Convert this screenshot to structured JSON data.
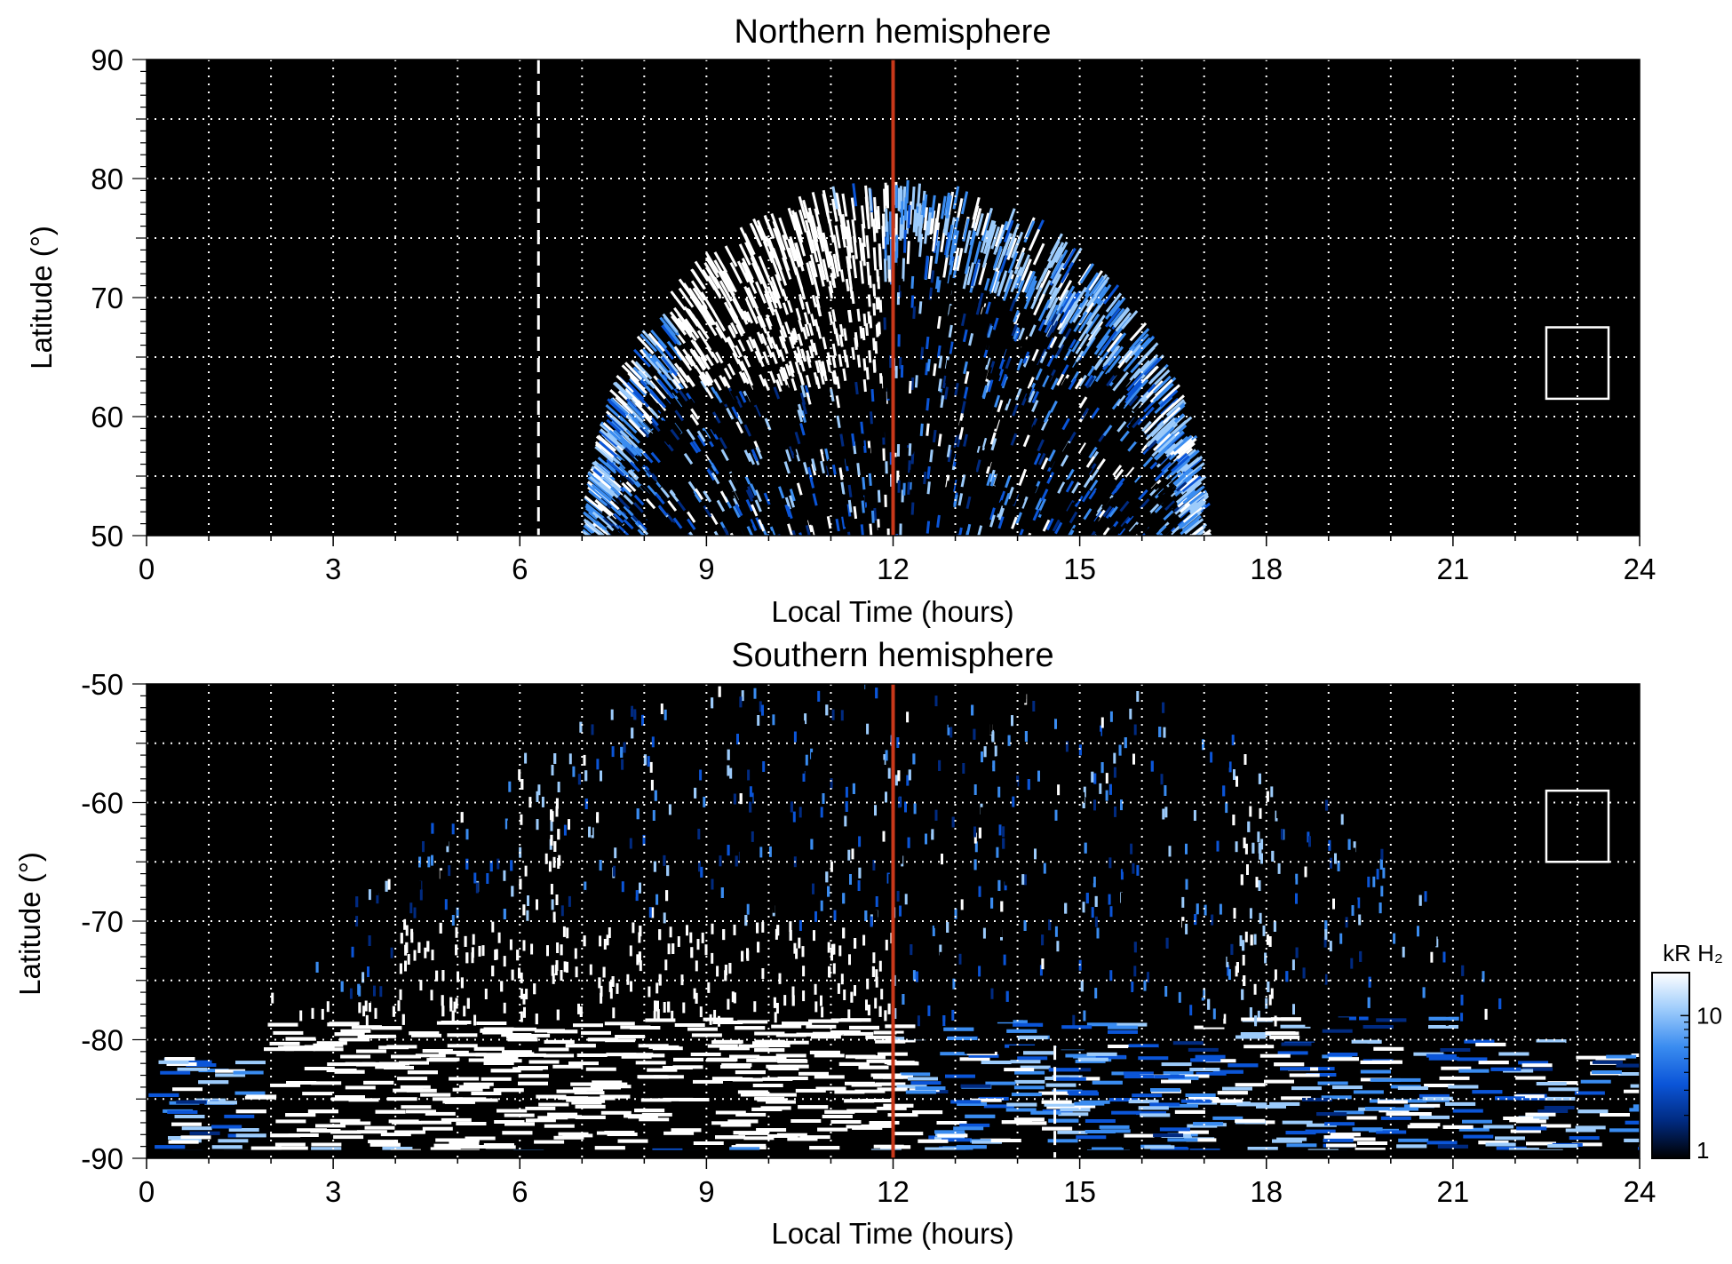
{
  "chart_data": [
    {
      "type": "heatmap",
      "title": "Northern hemisphere",
      "xlabel": "Local Time (hours)",
      "ylabel": "Latitude (°)",
      "xlim": [
        0,
        24
      ],
      "ylim": [
        50,
        90
      ],
      "xticks": [
        0,
        3,
        6,
        9,
        12,
        15,
        18,
        21,
        24
      ],
      "yticks": [
        50,
        60,
        70,
        80,
        90
      ],
      "grid": true,
      "background": "#000000",
      "coverage": {
        "lt_min": 7.0,
        "lt_max": 17.1,
        "lat_max": 80
      },
      "bright_region": {
        "lt_start": 8.4,
        "lt_end": 11.8,
        "lat_min": 63,
        "lat_max": 79
      },
      "reference_lines": [
        {
          "x": 12,
          "color": "#c8381a",
          "style": "solid"
        },
        {
          "x": 6.3,
          "color": "#ffffff",
          "style": "dashed"
        }
      ],
      "box": {
        "x": [
          22.5,
          23.5
        ],
        "y": [
          61.5,
          67.5
        ]
      }
    },
    {
      "type": "heatmap",
      "title": "Southern hemisphere",
      "xlabel": "Local Time (hours)",
      "ylabel": "Latitude (°)",
      "xlim": [
        0,
        24
      ],
      "ylim": [
        -90,
        -50
      ],
      "xticks": [
        0,
        3,
        6,
        9,
        12,
        15,
        18,
        21,
        24
      ],
      "yticks": [
        -90,
        -80,
        -70,
        -60,
        -50
      ],
      "grid": true,
      "background": "#000000",
      "bright_region": {
        "lt_start": 1.5,
        "lt_end": 12.0,
        "lat_min": -89,
        "lat_max": -70
      },
      "bright_bands": [
        {
          "lt": 6.3
        },
        {
          "lt": 17.8
        }
      ],
      "reference_lines": [
        {
          "x": 12,
          "color": "#c8381a",
          "style": "solid"
        },
        {
          "x": 14.6,
          "color": "#ffffff",
          "style": "dashed",
          "y": [
            -90,
            -80.5
          ]
        }
      ],
      "box": {
        "x": [
          22.5,
          23.5
        ],
        "y": [
          -65,
          -59
        ]
      }
    }
  ],
  "colorbar": {
    "label": "kR H₂",
    "scale": "log",
    "range": [
      1,
      20
    ],
    "ticks": [
      1,
      10
    ],
    "colors": [
      "#000000",
      "#002a80",
      "#0b55d8",
      "#3a8cf0",
      "#9ccbfb",
      "#ffffff"
    ]
  }
}
